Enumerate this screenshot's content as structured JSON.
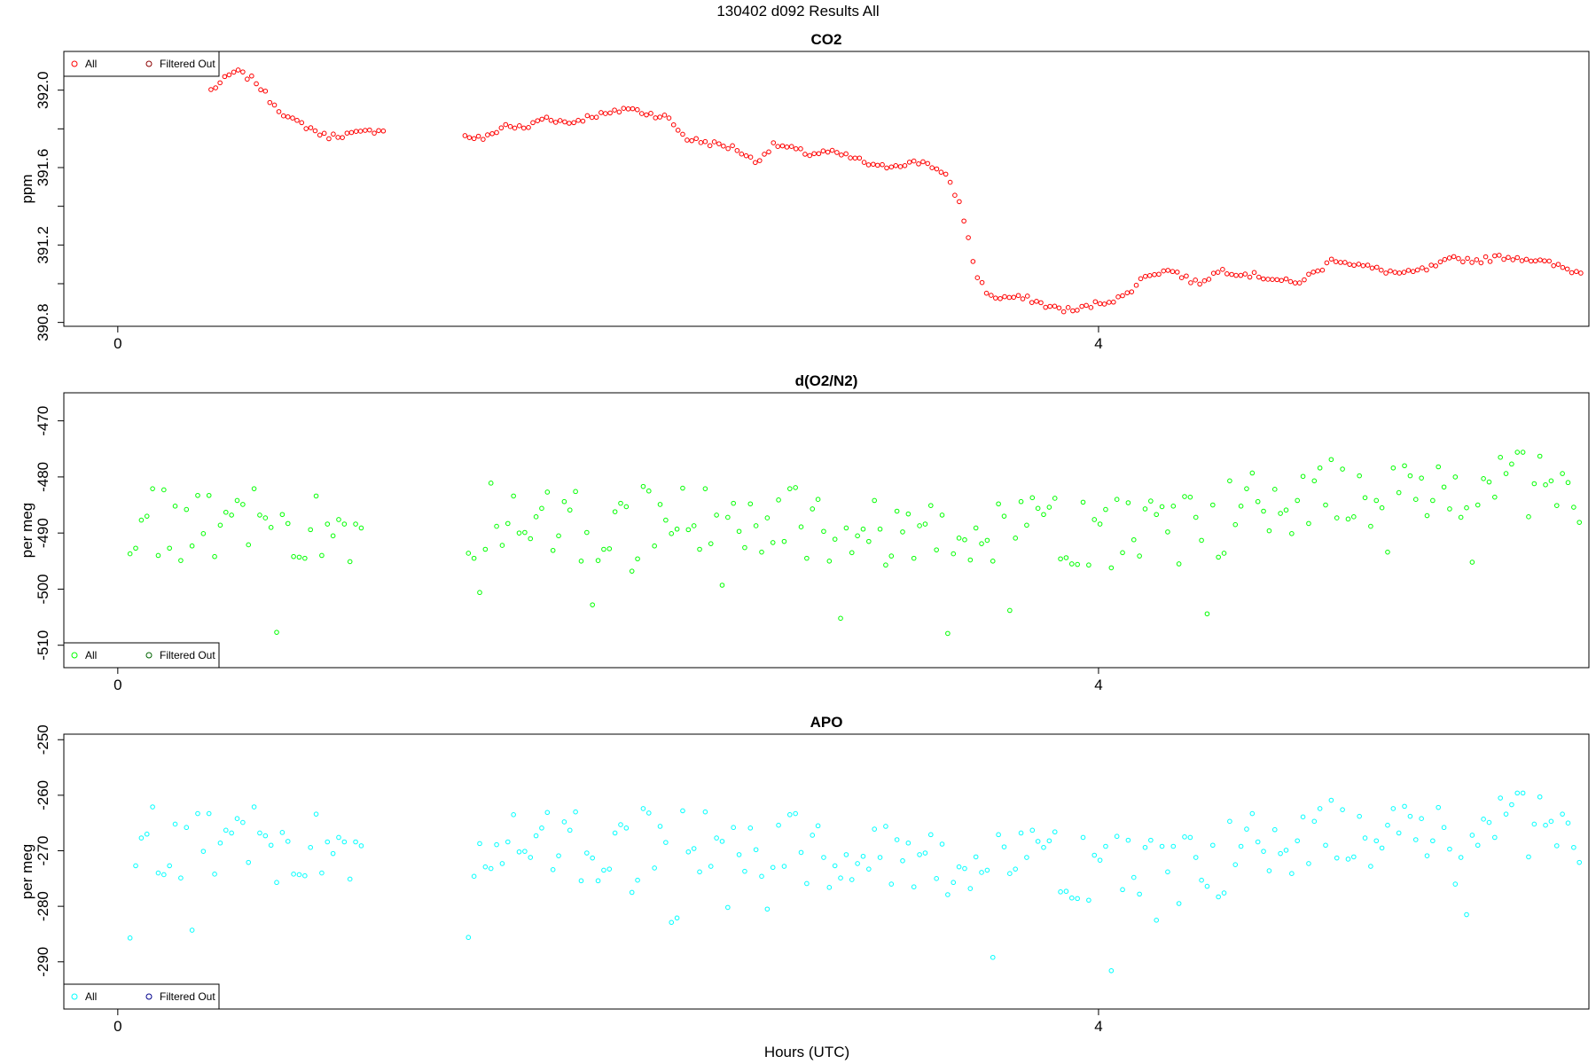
{
  "page": {
    "title": "130402   d092   Results All",
    "xlabel": "Hours (UTC)"
  },
  "chart_data": [
    {
      "type": "scatter",
      "title": "CO2",
      "xlabel": "Hours (UTC)",
      "ylabel": "ppm",
      "xlim": [
        -0.22,
        6.0
      ],
      "ylim": [
        390.78,
        392.2
      ],
      "x_ticks": [
        0,
        4
      ],
      "y_ticks": [
        390.8,
        391.2,
        391.6,
        392.0
      ],
      "y_minor_ticks": [
        391.0,
        391.4,
        391.8
      ],
      "y_tick_labels": [
        "390.8",
        "391.2",
        "391.6",
        "392.0"
      ],
      "legend": {
        "position": "top-left",
        "entries": [
          "All",
          "Filtered Out"
        ]
      },
      "series": [
        {
          "name": "All",
          "color": "#ff0000",
          "marker": "circle",
          "x": [],
          "y": []
        },
        {
          "name": "Filtered Out",
          "color": "#8b0000",
          "marker": "circle",
          "x": [],
          "y": []
        }
      ]
    },
    {
      "type": "scatter",
      "title": "d(O2/N2)",
      "xlabel": "Hours (UTC)",
      "ylabel": "per meg",
      "xlim": [
        -0.22,
        6.0
      ],
      "ylim": [
        -514.0,
        -465.0
      ],
      "x_ticks": [
        0,
        4
      ],
      "y_ticks": [
        -510,
        -500,
        -490,
        -480,
        -470
      ],
      "y_tick_labels": [
        "-510",
        "-500",
        "-490",
        "-480",
        "-470"
      ],
      "legend": {
        "position": "bottom-left",
        "entries": [
          "All",
          "Filtered Out"
        ]
      },
      "series": [
        {
          "name": "All",
          "color": "#00ff00",
          "marker": "circle",
          "x": [],
          "y": []
        },
        {
          "name": "Filtered Out",
          "color": "#006400",
          "marker": "circle",
          "x": [],
          "y": []
        }
      ]
    },
    {
      "type": "scatter",
      "title": "APO",
      "xlabel": "Hours (UTC)",
      "ylabel": "per meg",
      "xlim": [
        -0.22,
        6.0
      ],
      "ylim": [
        -298.5,
        -249.0
      ],
      "x_ticks": [
        0,
        4
      ],
      "y_ticks": [
        -290,
        -280,
        -270,
        -260,
        -250
      ],
      "y_tick_labels": [
        "-290",
        "-280",
        "-270",
        "-260",
        "-250"
      ],
      "legend": {
        "position": "bottom-left",
        "entries": [
          "All",
          "Filtered Out"
        ]
      },
      "series": [
        {
          "name": "All",
          "color": "#00ffff",
          "marker": "circle",
          "x": [],
          "y": []
        },
        {
          "name": "Filtered Out",
          "color": "#00008b",
          "marker": "circle",
          "x": [],
          "y": []
        }
      ]
    }
  ]
}
